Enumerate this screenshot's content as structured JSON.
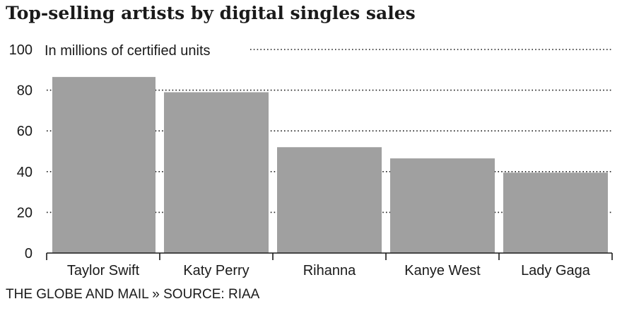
{
  "header": {
    "title": "Top-selling artists by digital singles sales"
  },
  "footer": {
    "source": "THE GLOBE AND MAIL » SOURCE: RIAA"
  },
  "colors": {
    "bar": "#a0a0a0",
    "text": "#1a1a1a",
    "grid": "#1a1a1a"
  },
  "chart_data": {
    "type": "bar",
    "title": "Top-selling artists by digital singles sales",
    "unit_label": "In millions of certified units",
    "categories": [
      "Taylor Swift",
      "Katy Perry",
      "Rihanna",
      "Kanye West",
      "Lady Gaga"
    ],
    "values": [
      86.5,
      79,
      52,
      46.5,
      39.5
    ],
    "ylim": [
      0,
      100
    ],
    "yticks": [
      0,
      20,
      40,
      60,
      80,
      100
    ],
    "grid": "dotted horizontal",
    "source": "THE GLOBE AND MAIL » SOURCE: RIAA"
  }
}
